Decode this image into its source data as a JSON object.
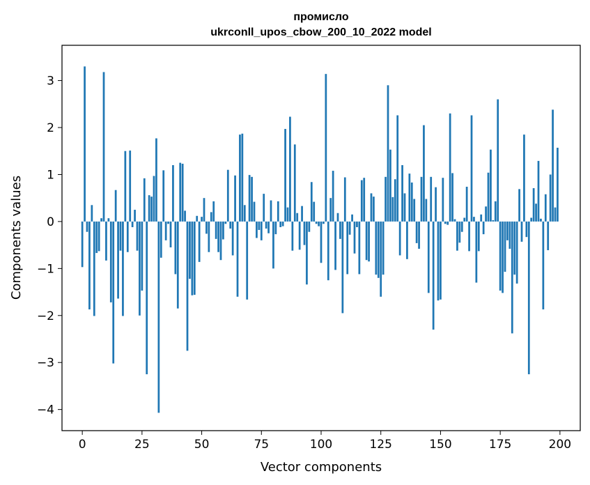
{
  "chart_data": {
    "type": "bar",
    "title": [
      "промисло",
      "ukrconll_upos_cbow_200_10_2022 model"
    ],
    "xlabel": "Vector components",
    "ylabel": "Components values",
    "xlim": [
      -8.5,
      208.5
    ],
    "ylim": [
      -4.45,
      3.75
    ],
    "xticks": [
      0,
      25,
      50,
      75,
      100,
      125,
      150,
      175,
      200
    ],
    "yticks": [
      -4,
      -3,
      -2,
      -1,
      0,
      1,
      2,
      3
    ],
    "bar_color": "#1f77b4",
    "grid": false,
    "x": [
      0,
      1,
      2,
      3,
      4,
      5,
      6,
      7,
      8,
      9,
      10,
      11,
      12,
      13,
      14,
      15,
      16,
      17,
      18,
      19,
      20,
      21,
      22,
      23,
      24,
      25,
      26,
      27,
      28,
      29,
      30,
      31,
      32,
      33,
      34,
      35,
      36,
      37,
      38,
      39,
      40,
      41,
      42,
      43,
      44,
      45,
      46,
      47,
      48,
      49,
      50,
      51,
      52,
      53,
      54,
      55,
      56,
      57,
      58,
      59,
      60,
      61,
      62,
      63,
      64,
      65,
      66,
      67,
      68,
      69,
      70,
      71,
      72,
      73,
      74,
      75,
      76,
      77,
      78,
      79,
      80,
      81,
      82,
      83,
      84,
      85,
      86,
      87,
      88,
      89,
      90,
      91,
      92,
      93,
      94,
      95,
      96,
      97,
      98,
      99,
      100,
      101,
      102,
      103,
      104,
      105,
      106,
      107,
      108,
      109,
      110,
      111,
      112,
      113,
      114,
      115,
      116,
      117,
      118,
      119,
      120,
      121,
      122,
      123,
      124,
      125,
      126,
      127,
      128,
      129,
      130,
      131,
      132,
      133,
      134,
      135,
      136,
      137,
      138,
      139,
      140,
      141,
      142,
      143,
      144,
      145,
      146,
      147,
      148,
      149,
      150,
      151,
      152,
      153,
      154,
      155,
      156,
      157,
      158,
      159,
      160,
      161,
      162,
      163,
      164,
      165,
      166,
      167,
      168,
      169,
      170,
      171,
      172,
      173,
      174,
      175,
      176,
      177,
      178,
      179,
      180,
      181,
      182,
      183,
      184,
      185,
      186,
      187,
      188,
      189,
      190,
      191,
      192,
      193,
      194,
      195,
      196,
      197,
      198,
      199
    ],
    "values": [
      -0.97,
      3.3,
      -0.22,
      -1.87,
      0.35,
      -2.01,
      -0.67,
      -0.63,
      0.07,
      3.18,
      -0.83,
      0.07,
      -1.72,
      -3.02,
      0.67,
      -1.64,
      -0.62,
      -2.01,
      1.5,
      -0.65,
      1.51,
      -0.12,
      0.25,
      -0.62,
      -2.0,
      -1.47,
      0.92,
      -3.25,
      0.56,
      0.53,
      0.97,
      1.77,
      -4.07,
      -0.77,
      1.09,
      -0.4,
      -0.05,
      -0.55,
      1.2,
      -1.12,
      -1.85,
      1.25,
      1.23,
      0.23,
      -2.75,
      -1.22,
      -1.57,
      -1.56,
      0.12,
      -0.86,
      0.1,
      0.5,
      -0.26,
      -0.65,
      0.2,
      0.43,
      -0.37,
      -0.65,
      -0.82,
      -0.38,
      -0.05,
      1.1,
      -0.15,
      -0.72,
      0.98,
      -1.6,
      1.85,
      1.87,
      0.35,
      -1.66,
      0.99,
      0.95,
      0.42,
      -0.35,
      -0.18,
      -0.4,
      0.59,
      -0.15,
      -0.25,
      0.45,
      -1.0,
      -0.27,
      0.43,
      -0.12,
      -0.1,
      1.97,
      0.3,
      2.23,
      -0.62,
      1.64,
      0.18,
      -0.6,
      0.33,
      -0.5,
      -1.34,
      -0.22,
      0.84,
      0.42,
      -0.05,
      -0.1,
      -0.88,
      -0.05,
      3.14,
      -1.25,
      0.5,
      1.08,
      -1.03,
      0.18,
      -0.37,
      -1.95,
      0.94,
      -1.12,
      -0.28,
      0.15,
      -0.68,
      -0.12,
      -1.12,
      0.88,
      0.93,
      -0.82,
      -0.85,
      0.6,
      0.53,
      -1.13,
      -1.2,
      -1.6,
      -1.13,
      0.95,
      2.9,
      1.53,
      0.52,
      0.9,
      2.26,
      -0.72,
      1.2,
      0.6,
      -0.8,
      1.02,
      0.83,
      0.48,
      -0.46,
      -0.58,
      0.95,
      2.05,
      0.48,
      -1.52,
      0.95,
      -2.3,
      0.73,
      -1.68,
      -1.66,
      0.93,
      -0.05,
      -0.07,
      2.3,
      1.03,
      0.05,
      -0.62,
      -0.45,
      -0.22,
      0.08,
      0.74,
      -0.63,
      2.26,
      0.1,
      -1.3,
      -0.63,
      0.15,
      -0.27,
      0.32,
      1.04,
      1.53,
      0.03,
      0.43,
      2.6,
      -1.47,
      -1.52,
      -1.07,
      -0.4,
      -0.58,
      -2.38,
      -1.13,
      -1.32,
      0.69,
      -0.43,
      1.85,
      -0.33,
      -3.25,
      0.08,
      0.71,
      0.38,
      1.29,
      0.06,
      -1.87,
      0.58,
      -0.61,
      1.0,
      2.38,
      0.3,
      1.57
    ]
  }
}
